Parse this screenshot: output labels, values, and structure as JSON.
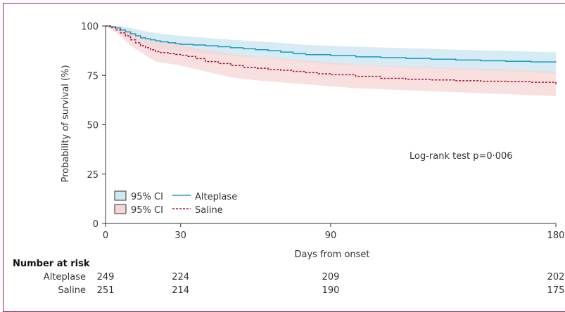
{
  "chart_data": {
    "type": "line",
    "ylabel": "Probability of survival (%)",
    "xlabel": "Days from onset",
    "ylim": [
      0,
      100
    ],
    "xlim": [
      0,
      180
    ],
    "xticks": [
      0,
      30,
      90,
      180
    ],
    "yticks": [
      0,
      25,
      50,
      75,
      100
    ],
    "annotation": "Log-rank test p=0·006",
    "legend_placement": "bottom-left",
    "series": [
      {
        "name": "Alteplase",
        "line_color": "#1a9bbf",
        "line_style": "solid",
        "ci_label": "95% CI",
        "ci_color": "#cfe8f1",
        "points": [
          [
            0,
            100
          ],
          [
            2,
            99.6
          ],
          [
            4,
            99
          ],
          [
            6,
            98
          ],
          [
            8,
            97
          ],
          [
            10,
            96
          ],
          [
            12,
            95
          ],
          [
            14,
            94
          ],
          [
            16,
            93.5
          ],
          [
            18,
            93
          ],
          [
            20,
            92.5
          ],
          [
            22,
            92
          ],
          [
            25,
            91.5
          ],
          [
            28,
            91
          ],
          [
            30,
            90.7
          ],
          [
            35,
            90.4
          ],
          [
            40,
            90
          ],
          [
            45,
            89.5
          ],
          [
            50,
            89
          ],
          [
            55,
            88.5
          ],
          [
            60,
            88
          ],
          [
            65,
            87.5
          ],
          [
            70,
            86.8
          ],
          [
            75,
            86
          ],
          [
            80,
            85.5
          ],
          [
            90,
            85
          ],
          [
            100,
            84.4
          ],
          [
            110,
            84
          ],
          [
            120,
            83.6
          ],
          [
            130,
            83.2
          ],
          [
            140,
            82.8
          ],
          [
            150,
            82.4
          ],
          [
            160,
            82.1
          ],
          [
            170,
            81.8
          ],
          [
            180,
            81.6
          ]
        ],
        "ci_upper": [
          [
            0,
            100
          ],
          [
            5,
            100
          ],
          [
            10,
            99
          ],
          [
            15,
            97.5
          ],
          [
            20,
            96.5
          ],
          [
            30,
            95
          ],
          [
            40,
            94
          ],
          [
            50,
            93
          ],
          [
            60,
            92.3
          ],
          [
            70,
            91.5
          ],
          [
            80,
            90.5
          ],
          [
            90,
            90
          ],
          [
            100,
            89.5
          ],
          [
            120,
            88.8
          ],
          [
            140,
            88
          ],
          [
            160,
            87.4
          ],
          [
            180,
            86.7
          ]
        ],
        "ci_lower": [
          [
            0,
            100
          ],
          [
            5,
            97
          ],
          [
            10,
            93
          ],
          [
            15,
            91
          ],
          [
            20,
            89
          ],
          [
            30,
            87
          ],
          [
            40,
            86
          ],
          [
            50,
            85
          ],
          [
            60,
            84
          ],
          [
            70,
            83
          ],
          [
            80,
            81.5
          ],
          [
            90,
            80.5
          ],
          [
            100,
            80
          ],
          [
            120,
            79
          ],
          [
            140,
            78
          ],
          [
            160,
            77
          ],
          [
            180,
            76
          ]
        ]
      },
      {
        "name": "Saline",
        "line_color": "#b0103a",
        "line_style": "dashed",
        "ci_label": "95% CI",
        "ci_color": "#f6d6d4",
        "points": [
          [
            0,
            100
          ],
          [
            2,
            99.3
          ],
          [
            4,
            98
          ],
          [
            6,
            96.5
          ],
          [
            8,
            95
          ],
          [
            10,
            93
          ],
          [
            12,
            91.5
          ],
          [
            14,
            90
          ],
          [
            16,
            89
          ],
          [
            18,
            88
          ],
          [
            20,
            87
          ],
          [
            22,
            86.5
          ],
          [
            25,
            86
          ],
          [
            28,
            85.6
          ],
          [
            30,
            85.2
          ],
          [
            33,
            84.6
          ],
          [
            36,
            83.5
          ],
          [
            40,
            82
          ],
          [
            45,
            81
          ],
          [
            50,
            80
          ],
          [
            55,
            79
          ],
          [
            60,
            78.6
          ],
          [
            65,
            78
          ],
          [
            70,
            77.6
          ],
          [
            75,
            77
          ],
          [
            80,
            76.4
          ],
          [
            85,
            75.8
          ],
          [
            90,
            75.3
          ],
          [
            100,
            74.5
          ],
          [
            110,
            73.5
          ],
          [
            120,
            73
          ],
          [
            130,
            72.7
          ],
          [
            140,
            72.3
          ],
          [
            150,
            72
          ],
          [
            160,
            71.8
          ],
          [
            170,
            71.5
          ],
          [
            180,
            70.5
          ]
        ],
        "ci_upper": [
          [
            0,
            100
          ],
          [
            5,
            99.5
          ],
          [
            10,
            97.5
          ],
          [
            15,
            95
          ],
          [
            20,
            92.5
          ],
          [
            30,
            90.5
          ],
          [
            40,
            88
          ],
          [
            50,
            86
          ],
          [
            60,
            84.5
          ],
          [
            70,
            83.5
          ],
          [
            80,
            82.5
          ],
          [
            90,
            81.5
          ],
          [
            100,
            80.5
          ],
          [
            120,
            79.5
          ],
          [
            140,
            78.8
          ],
          [
            160,
            78
          ],
          [
            180,
            77
          ]
        ],
        "ci_lower": [
          [
            0,
            100
          ],
          [
            5,
            96
          ],
          [
            10,
            90
          ],
          [
            15,
            86
          ],
          [
            20,
            82
          ],
          [
            30,
            80
          ],
          [
            40,
            77
          ],
          [
            50,
            74
          ],
          [
            60,
            72.5
          ],
          [
            70,
            71.5
          ],
          [
            80,
            70.5
          ],
          [
            90,
            69.5
          ],
          [
            100,
            68.5
          ],
          [
            120,
            67.5
          ],
          [
            140,
            66.5
          ],
          [
            160,
            65.5
          ],
          [
            180,
            64.5
          ]
        ]
      }
    ],
    "risk_table": {
      "title": "Number at risk",
      "columns": [
        0,
        30,
        90,
        180
      ],
      "rows": [
        {
          "label": "Alteplase",
          "values": [
            "249",
            "224",
            "209",
            "202"
          ]
        },
        {
          "label": "Saline",
          "values": [
            "251",
            "214",
            "190",
            "175"
          ]
        }
      ]
    }
  }
}
